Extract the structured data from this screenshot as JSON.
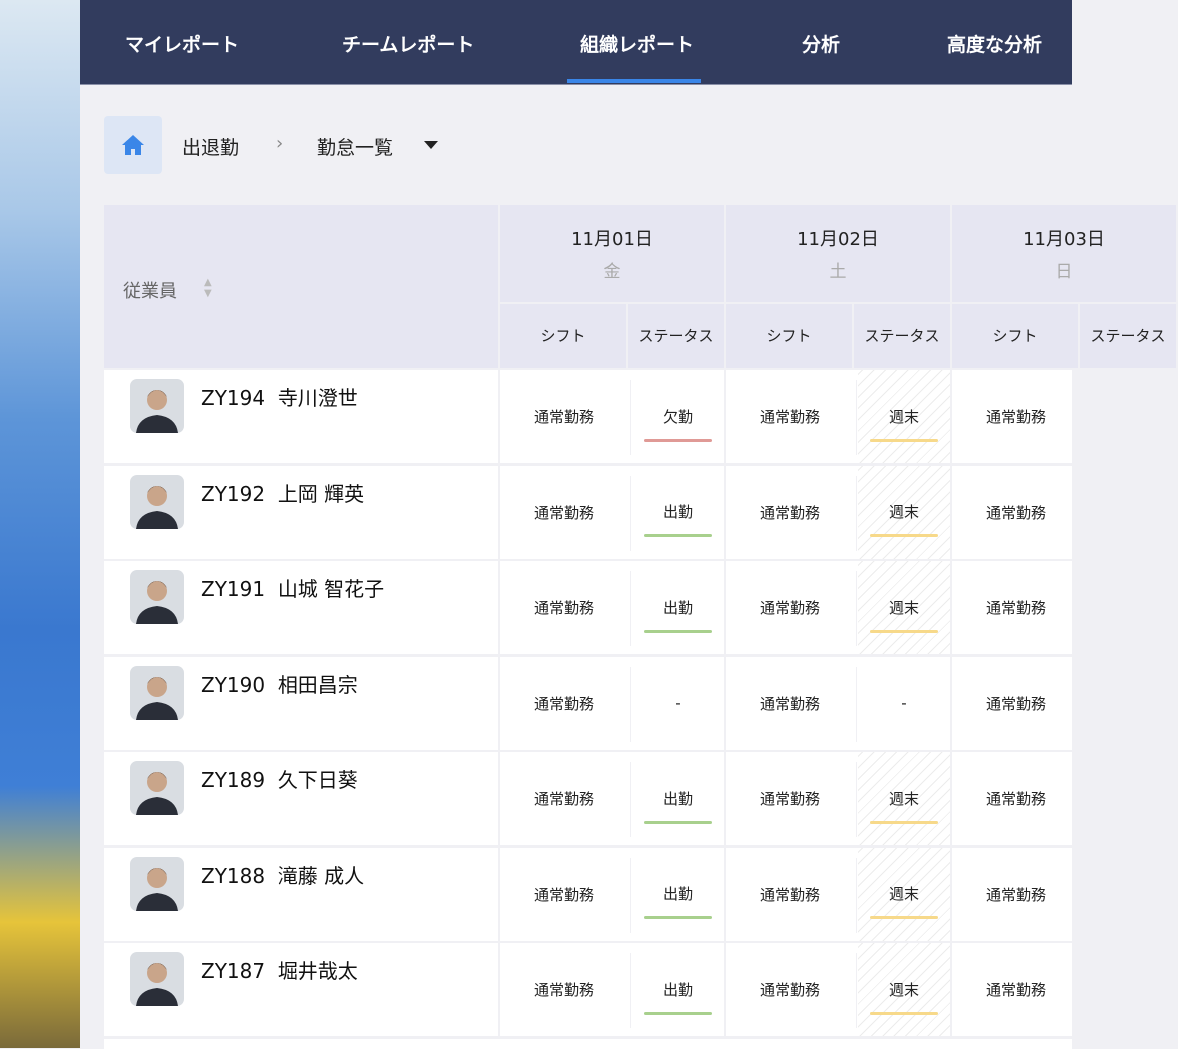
{
  "nav": {
    "tabs": [
      {
        "label": "マイレポート"
      },
      {
        "label": "チームレポート"
      },
      {
        "label": "組織レポート",
        "active": true
      },
      {
        "label": "分析"
      },
      {
        "label": "高度な分析"
      }
    ],
    "accent": "#3a86e8",
    "bg": "#323c5e"
  },
  "breadcrumb": {
    "home_icon": "home-icon",
    "level1": "出退勤",
    "level2": "勤怠一覧"
  },
  "table": {
    "employee_header": "従業員",
    "days": [
      {
        "date": "11月01日",
        "weekday": "金"
      },
      {
        "date": "11月02日",
        "weekday": "土"
      },
      {
        "date": "11月03日",
        "weekday": "日"
      }
    ],
    "sub_headers": {
      "shift": "シフト",
      "status": "ステータス"
    },
    "status_colors": {
      "欠勤": "#e09a96",
      "出勤": "#a8d08d",
      "週末": "#f7d98a"
    },
    "rows": [
      {
        "id": "ZY194",
        "name": "寺川澄世",
        "cells": [
          [
            "通常勤務",
            "欠勤"
          ],
          [
            "通常勤務",
            "週末"
          ],
          [
            "通常勤務",
            ""
          ]
        ]
      },
      {
        "id": "ZY192",
        "name": "上岡 輝英",
        "cells": [
          [
            "通常勤務",
            "出勤"
          ],
          [
            "通常勤務",
            "週末"
          ],
          [
            "通常勤務",
            ""
          ]
        ]
      },
      {
        "id": "ZY191",
        "name": "山城 智花子",
        "cells": [
          [
            "通常勤務",
            "出勤"
          ],
          [
            "通常勤務",
            "週末"
          ],
          [
            "通常勤務",
            ""
          ]
        ]
      },
      {
        "id": "ZY190",
        "name": "相田昌宗",
        "cells": [
          [
            "通常勤務",
            "-"
          ],
          [
            "通常勤務",
            "-"
          ],
          [
            "通常勤務",
            ""
          ]
        ]
      },
      {
        "id": "ZY189",
        "name": "久下日葵",
        "cells": [
          [
            "通常勤務",
            "出勤"
          ],
          [
            "通常勤務",
            "週末"
          ],
          [
            "通常勤務",
            ""
          ]
        ]
      },
      {
        "id": "ZY188",
        "name": "滝藤 成人",
        "cells": [
          [
            "通常勤務",
            "出勤"
          ],
          [
            "通常勤務",
            "週末"
          ],
          [
            "通常勤務",
            ""
          ]
        ]
      },
      {
        "id": "ZY187",
        "name": "堀井哉太",
        "cells": [
          [
            "通常勤務",
            "出勤"
          ],
          [
            "通常勤務",
            "週末"
          ],
          [
            "通常勤務",
            ""
          ]
        ]
      }
    ]
  }
}
